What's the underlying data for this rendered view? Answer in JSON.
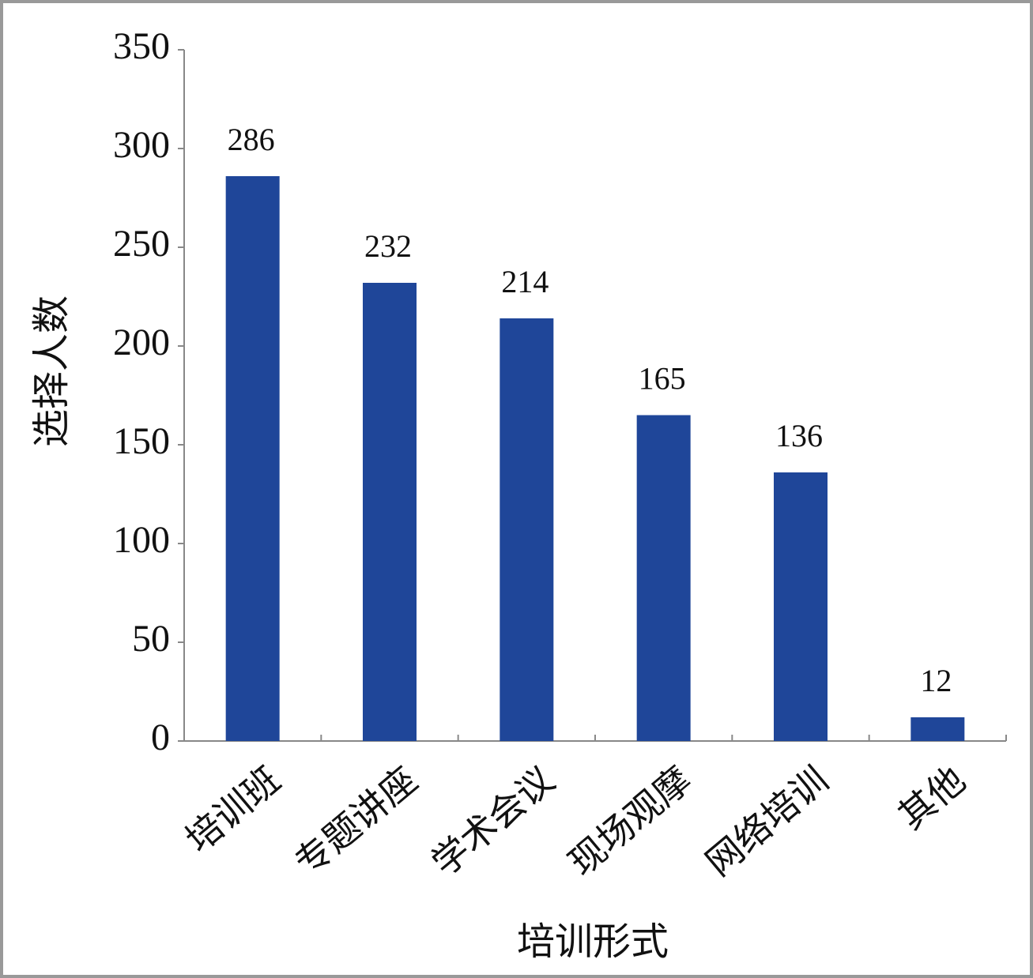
{
  "chart_data": {
    "type": "bar",
    "categories": [
      "培训班",
      "专题讲座",
      "学术会议",
      "现场观摩",
      "网络培训",
      "其他"
    ],
    "values": [
      286,
      232,
      214,
      165,
      136,
      12
    ],
    "color": "#1f4699",
    "xlabel": "培训形式",
    "ylabel": "选择人数",
    "ylim": [
      0,
      350
    ],
    "yticks": [
      0,
      50,
      100,
      150,
      200,
      250,
      300,
      350
    ],
    "grid": false
  }
}
